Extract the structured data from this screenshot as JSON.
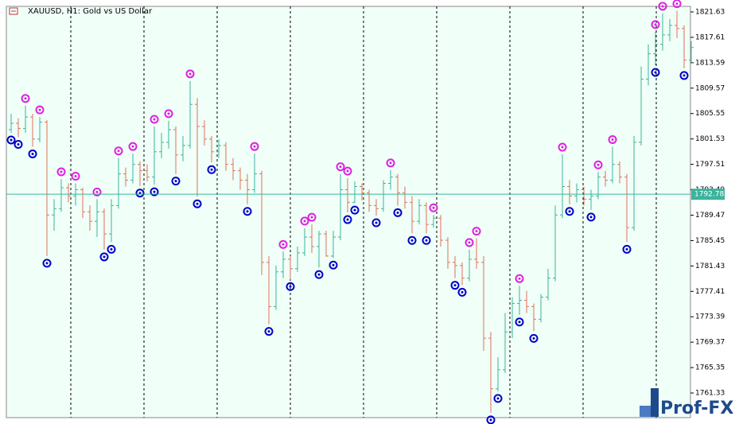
{
  "chart_data": {
    "type": "ohlc",
    "title": "XAUUSD, H1: Gold vs US Dollar",
    "watermark": "Prof-FX",
    "open": [
      1803.0,
      1804.0,
      1803.2,
      1805.0,
      1801.5,
      1804.2,
      1789.5,
      1790.5,
      1793.8,
      1792.5,
      1793.5,
      1790.0,
      1788.5,
      1790.0,
      1786.5,
      1791.0,
      1796.0,
      1795.0,
      1797.5,
      1796.5,
      1795.5,
      1799.5,
      1801.0,
      1803.0,
      1799.0,
      1800.5,
      1807.0,
      1803.5,
      1801.5,
      1799.5,
      1800.5,
      1797.5,
      1796.5,
      1795.0,
      1793.5,
      1796.0,
      1782.0,
      1775.0,
      1780.5,
      1782.5,
      1781.0,
      1783.5,
      1786.0,
      1784.5,
      1786.5,
      1783.0,
      1786.0,
      1793.5,
      1791.5,
      1794.0,
      1793.0,
      1791.0,
      1790.5,
      1794.5,
      1795.5,
      1793.0,
      1791.5,
      1788.5,
      1791.0,
      1788.0,
      1789.0,
      1785.5,
      1782.0,
      1781.5,
      1779.5,
      1782.5,
      1782.0,
      1770.0,
      1762.0,
      1765.0,
      1771.0,
      1775.5,
      1776.0,
      1775.0,
      1773.0,
      1776.5,
      1779.5,
      1789.5,
      1794.0,
      1792.5,
      1793.5,
      1792.0,
      1792.5,
      1795.5,
      1795.0,
      1797.5,
      1795.5,
      1787.5,
      1801.0,
      1811.0,
      1815.0,
      1816.5,
      1818.0,
      1819.5,
      1819.0,
      1814.0
    ],
    "high": [
      1805.5,
      1804.8,
      1806.8,
      1805.5,
      1805.0,
      1804.5,
      1792.0,
      1795.2,
      1794.5,
      1794.5,
      1793.8,
      1791.0,
      1792.0,
      1790.5,
      1792.0,
      1798.5,
      1797.0,
      1799.2,
      1798.0,
      1797.5,
      1803.5,
      1802.5,
      1804.4,
      1803.5,
      1802.0,
      1810.7,
      1808.0,
      1804.5,
      1802.0,
      1801.5,
      1801.0,
      1798.5,
      1797.0,
      1796.0,
      1799.2,
      1796.5,
      1783.0,
      1781.5,
      1783.7,
      1783.0,
      1784.5,
      1787.4,
      1788.0,
      1787.0,
      1787.0,
      1787.0,
      1796.0,
      1795.3,
      1794.8,
      1794.5,
      1793.5,
      1792.0,
      1795.0,
      1796.6,
      1796.0,
      1794.0,
      1792.5,
      1792.0,
      1791.5,
      1789.5,
      1789.5,
      1786.0,
      1783.0,
      1782.0,
      1784.0,
      1785.8,
      1783.0,
      1771.0,
      1767.0,
      1774.0,
      1776.5,
      1778.3,
      1777.5,
      1775.5,
      1777.0,
      1781.0,
      1791.0,
      1799.1,
      1795.0,
      1794.5,
      1794.0,
      1793.5,
      1796.3,
      1796.5,
      1800.3,
      1798.0,
      1796.0,
      1802.0,
      1813.0,
      1816.5,
      1818.5,
      1821.4,
      1820.5,
      1821.8,
      1819.5,
      1817.0
    ],
    "low": [
      1802.5,
      1801.8,
      1802.5,
      1800.3,
      1801.0,
      1783.0,
      1787.0,
      1790.0,
      1791.5,
      1791.0,
      1789.0,
      1787.0,
      1786.0,
      1784.0,
      1785.2,
      1790.5,
      1794.0,
      1794.5,
      1794.1,
      1794.8,
      1794.3,
      1798.5,
      1800.0,
      1796.0,
      1798.0,
      1800.0,
      1792.4,
      1800.5,
      1797.8,
      1798.5,
      1796.5,
      1795.0,
      1793.5,
      1791.2,
      1793.0,
      1780.0,
      1772.2,
      1774.5,
      1779.5,
      1779.3,
      1780.5,
      1783.0,
      1783.5,
      1781.2,
      1782.9,
      1782.7,
      1785.5,
      1789.9,
      1791.4,
      1791.8,
      1790.0,
      1789.4,
      1790.0,
      1793.5,
      1791.0,
      1790.5,
      1786.6,
      1788.0,
      1786.6,
      1787.5,
      1784.5,
      1781.0,
      1779.5,
      1778.4,
      1779.0,
      1781.0,
      1768.0,
      1758.2,
      1761.6,
      1764.5,
      1770.0,
      1773.7,
      1774.0,
      1771.1,
      1772.5,
      1776.0,
      1779.0,
      1789.0,
      1791.2,
      1791.5,
      1791.0,
      1790.3,
      1792.0,
      1794.0,
      1794.5,
      1794.5,
      1785.2,
      1787.0,
      1800.5,
      1810.0,
      1813.2,
      1815.5,
      1817.0,
      1817.5,
      1812.7,
      1813.5
    ],
    "close": [
      1804.0,
      1803.2,
      1805.0,
      1801.5,
      1804.2,
      1789.5,
      1790.5,
      1793.8,
      1792.5,
      1793.5,
      1790.0,
      1788.5,
      1790.0,
      1786.5,
      1791.0,
      1796.0,
      1795.0,
      1797.5,
      1796.5,
      1795.5,
      1799.5,
      1801.0,
      1803.0,
      1799.0,
      1800.5,
      1807.0,
      1803.5,
      1801.5,
      1799.5,
      1800.5,
      1797.5,
      1796.5,
      1795.0,
      1793.5,
      1796.0,
      1782.0,
      1775.0,
      1780.5,
      1782.5,
      1781.0,
      1783.5,
      1786.0,
      1784.5,
      1786.5,
      1783.0,
      1786.0,
      1793.5,
      1791.5,
      1794.0,
      1793.0,
      1791.0,
      1790.5,
      1794.5,
      1795.5,
      1793.0,
      1791.5,
      1788.5,
      1791.0,
      1788.0,
      1789.0,
      1785.5,
      1782.0,
      1781.5,
      1779.5,
      1782.5,
      1782.0,
      1770.0,
      1762.0,
      1765.0,
      1771.0,
      1775.5,
      1776.0,
      1775.0,
      1773.0,
      1776.5,
      1779.5,
      1789.5,
      1794.0,
      1792.5,
      1793.5,
      1792.0,
      1792.5,
      1795.5,
      1795.0,
      1797.5,
      1795.5,
      1787.5,
      1801.0,
      1811.0,
      1815.0,
      1816.5,
      1818.0,
      1819.5,
      1819.0,
      1814.0,
      1816.0
    ],
    "fractals_up": [
      2,
      4,
      7,
      9,
      12,
      15,
      17,
      20,
      22,
      25,
      34,
      38,
      41,
      42,
      46,
      47,
      53,
      59,
      64,
      65,
      71,
      77,
      82,
      84,
      90,
      91,
      93
    ],
    "fractals_down": [
      0,
      1,
      3,
      5,
      13,
      14,
      18,
      20,
      23,
      26,
      28,
      33,
      36,
      39,
      43,
      45,
      47,
      48,
      51,
      54,
      56,
      58,
      62,
      63,
      67,
      68,
      71,
      73,
      78,
      81,
      86,
      90,
      94
    ],
    "up_color": "#3cb39c",
    "down_color": "#e0705a",
    "fractal_up_color": "#e020e0",
    "fractal_down_color": "#0000c8",
    "horizontal_line": {
      "value": 1792.78,
      "color": "#3cb39c"
    },
    "ylim": [
      1757.43,
      1822.51
    ],
    "yticks": [
      1761.33,
      1765.35,
      1769.37,
      1773.39,
      1777.41,
      1781.43,
      1785.45,
      1789.47,
      1793.49,
      1797.51,
      1801.53,
      1805.55,
      1809.57,
      1813.59,
      1817.61,
      1821.63
    ]
  }
}
